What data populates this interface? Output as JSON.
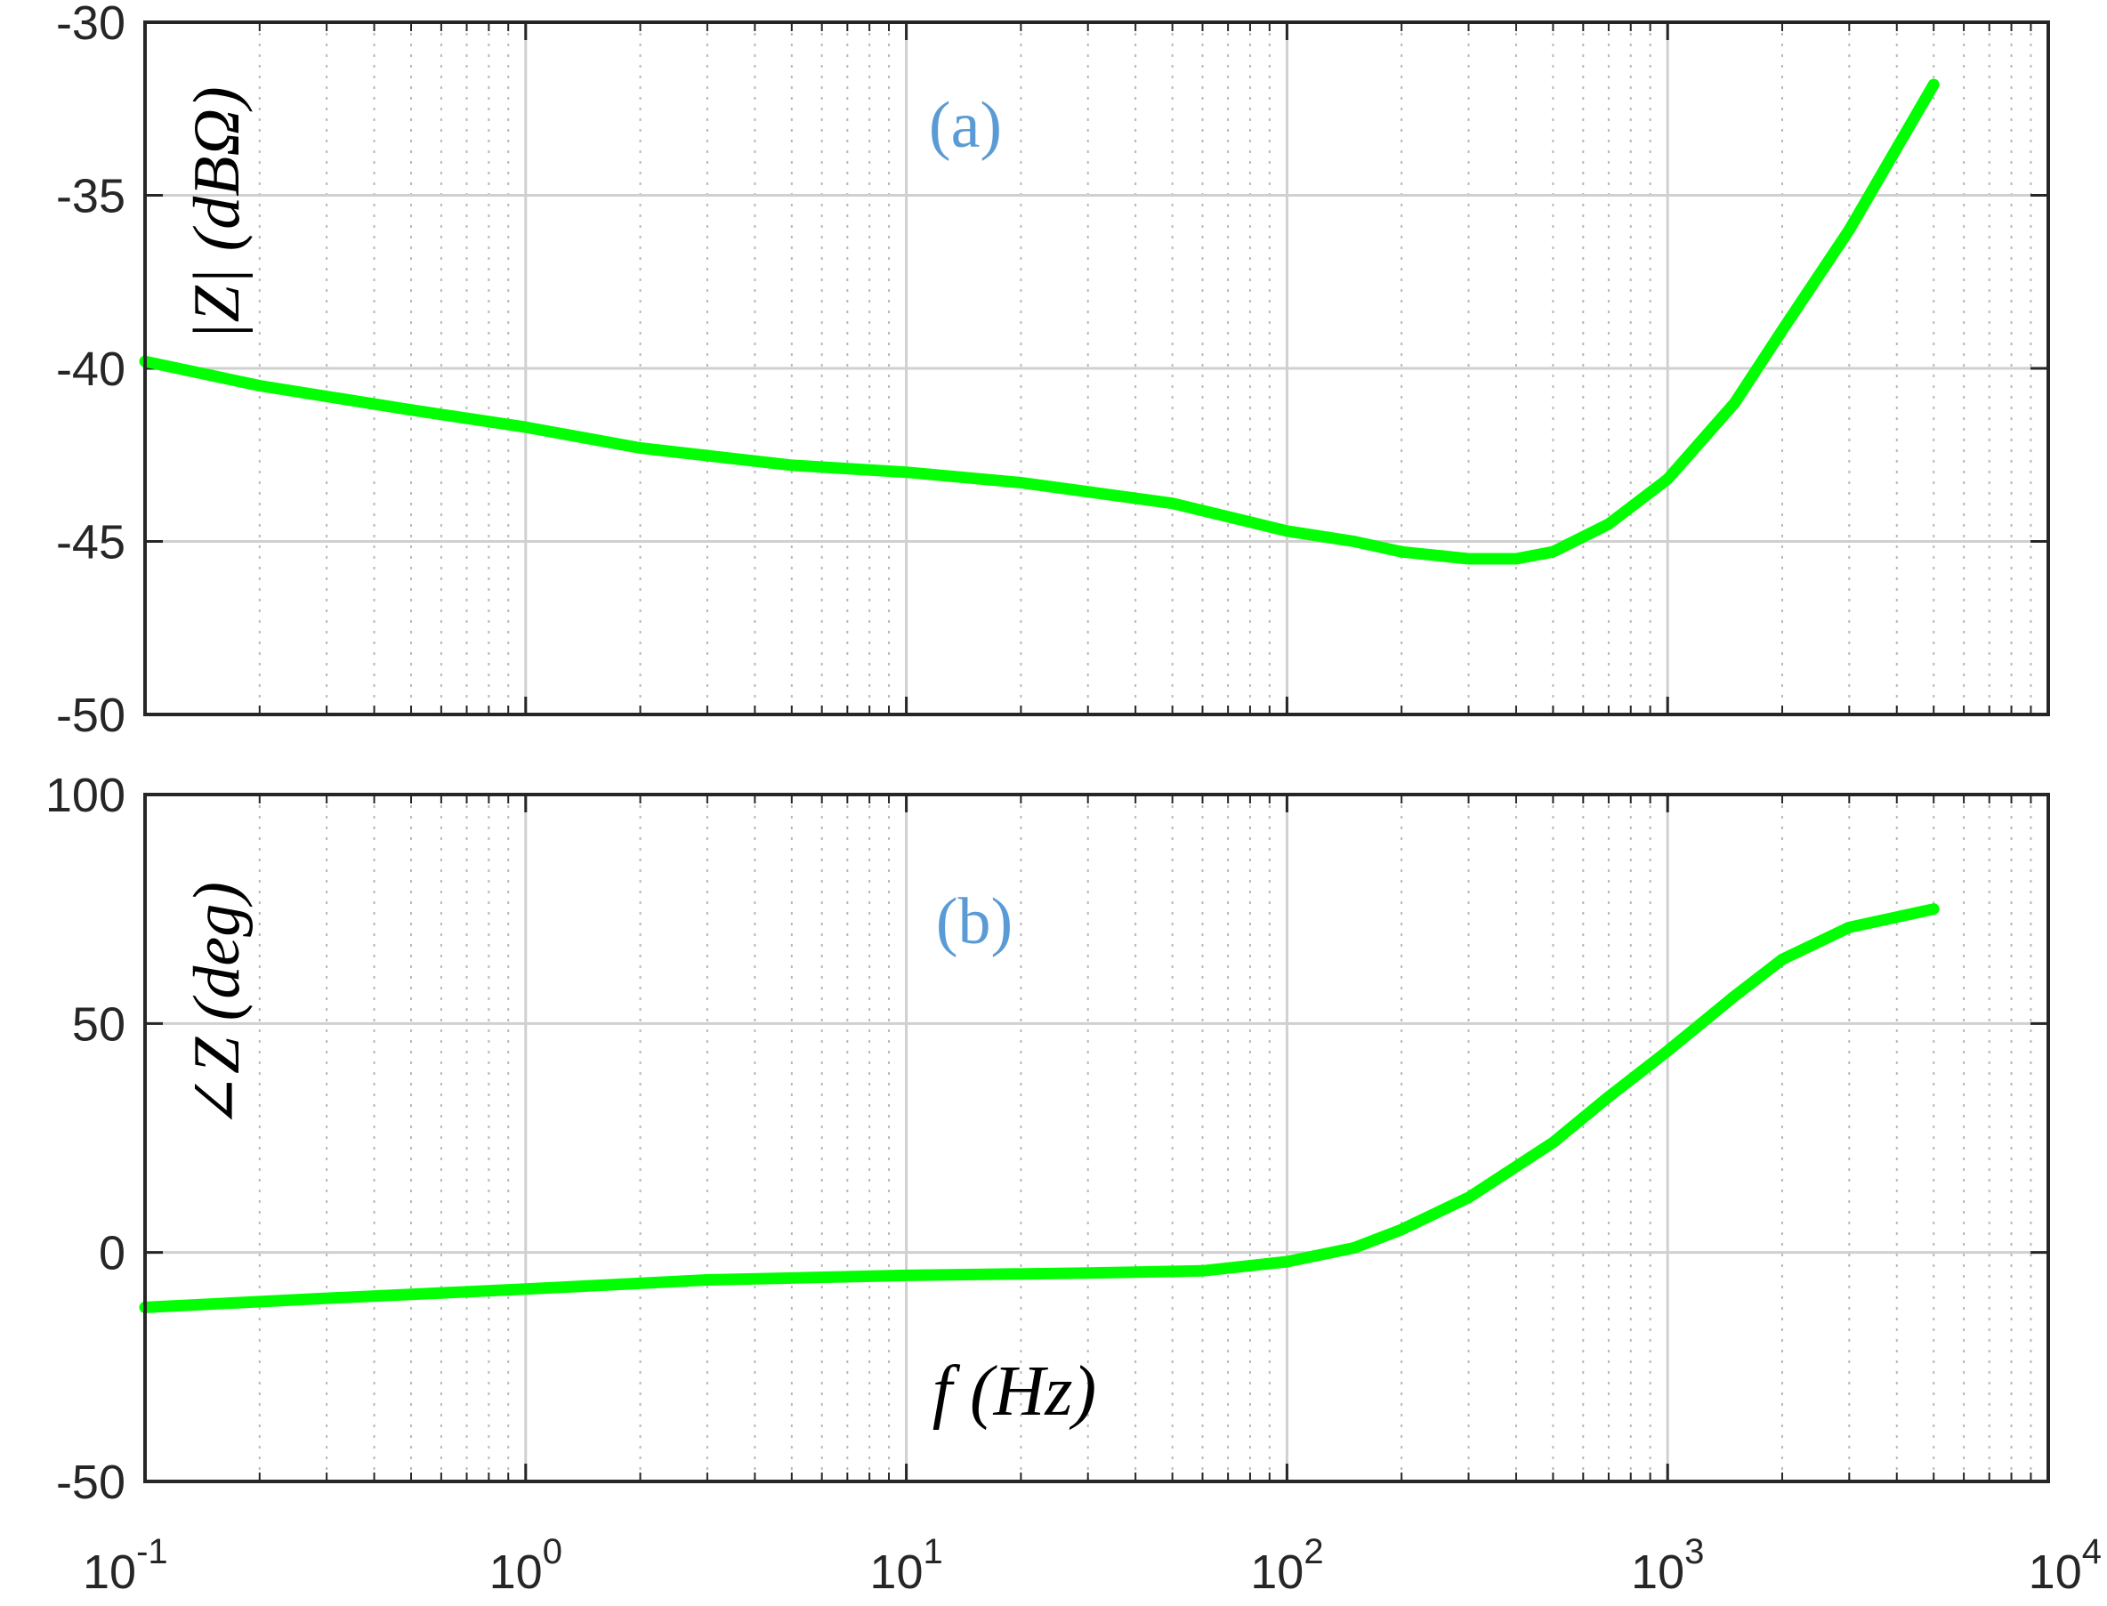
{
  "chart_data": [
    {
      "type": "line",
      "panel_label": "(a)",
      "ylabel": "|Z| (dBΩ)",
      "xlabel": "",
      "xscale": "log",
      "xlim": [
        0.1,
        10000
      ],
      "ylim": [
        -50,
        -30
      ],
      "yticks": [
        "-30",
        "-35",
        "-40",
        "-45",
        "-50"
      ],
      "xtick_labels_shown": false,
      "grid": true,
      "minor_grid": true,
      "line_color": "#00ff00",
      "label_color": "#5b9bd5",
      "series": [
        {
          "x": [
            0.1,
            0.2,
            0.5,
            1,
            2,
            5,
            10,
            20,
            50,
            100,
            150,
            200,
            300,
            400,
            500,
            700,
            1000,
            1500,
            2000,
            3000,
            5000
          ],
          "y": [
            -39.8,
            -40.5,
            -41.2,
            -41.7,
            -42.3,
            -42.8,
            -43.0,
            -43.3,
            -43.9,
            -44.7,
            -45.0,
            -45.3,
            -45.5,
            -45.5,
            -45.3,
            -44.5,
            -43.2,
            -41.0,
            -38.9,
            -36.0,
            -31.8
          ]
        }
      ]
    },
    {
      "type": "line",
      "panel_label": "(b)",
      "ylabel": "∠Z (deg)",
      "xlabel": "f (Hz)",
      "xscale": "log",
      "xlim": [
        0.1,
        10000
      ],
      "ylim": [
        -50,
        100
      ],
      "yticks": [
        "100",
        "50",
        "0",
        "-50"
      ],
      "xtick_labels": [
        {
          "base": "10",
          "exp": "-1"
        },
        {
          "base": "10",
          "exp": "0"
        },
        {
          "base": "10",
          "exp": "1"
        },
        {
          "base": "10",
          "exp": "2"
        },
        {
          "base": "10",
          "exp": "3"
        },
        {
          "base": "10",
          "exp": "4"
        }
      ],
      "grid": true,
      "minor_grid": true,
      "line_color": "#00ff00",
      "label_color": "#5b9bd5",
      "series": [
        {
          "x": [
            0.1,
            0.3,
            1,
            3,
            10,
            30,
            60,
            100,
            150,
            200,
            300,
            500,
            700,
            1000,
            1500,
            2000,
            3000,
            5000
          ],
          "y": [
            -12,
            -10,
            -8,
            -6,
            -5,
            -4.5,
            -4,
            -2,
            1,
            5,
            12,
            24,
            34,
            44,
            56,
            64,
            71,
            75
          ]
        }
      ]
    }
  ]
}
